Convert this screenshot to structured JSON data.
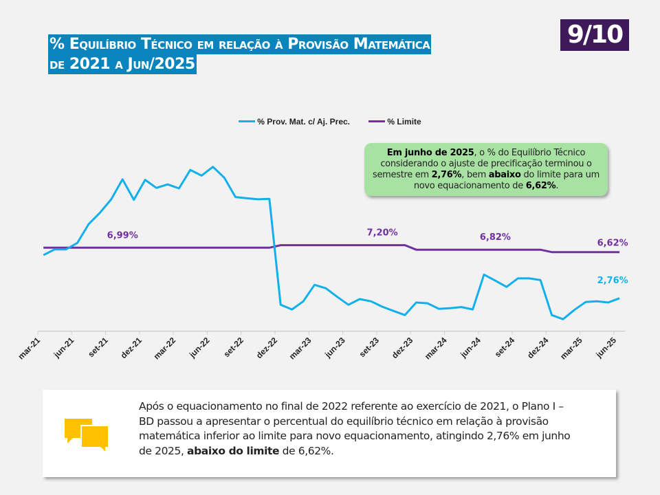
{
  "title": {
    "line1": "% Equilíbrio Técnico em relação à Provisão Matemática",
    "line2": "de 2021 a Jun/2025"
  },
  "page_badge": "9/10",
  "callout": {
    "bold1": "Em junho de 2025",
    "t1": ", o % do Equilíbrio Técnico considerando o ajuste de precificação terminou o semestre em ",
    "bold2": "2,76%",
    "t2": ", bem ",
    "bold3": "abaixo",
    "t3": " do limite para um novo equacionamento de ",
    "bold4": "6,62%",
    "t4": "."
  },
  "note": {
    "t1": "Após o equacionamento no final de 2022 referente ao exercício de 2021, o Plano I – BD passou a apresentar o percentual do equilíbrio técnico em relação à provisão matemática inferior ao limite para novo equacionamento, atingindo 2,76% em junho de 2025, ",
    "bold": "abaixo do limite",
    "t2": " de 6,62%."
  },
  "chart_data": {
    "type": "line",
    "title": "",
    "xlabel": "",
    "ylabel": "",
    "ylim": [
      0,
      14
    ],
    "grid": false,
    "legend_position": "top",
    "start_month": "mar-21",
    "end_month": "jun-25",
    "tick_labels": [
      "mar-21",
      "jun-21",
      "set-21",
      "dez-21",
      "mar-22",
      "jun-22",
      "set-22",
      "dez-22",
      "mar-23",
      "jun-23",
      "set-23",
      "dez-23",
      "mar-24",
      "jun-24",
      "set-24",
      "dez-24",
      "mar-25",
      "jun-25"
    ],
    "series": [
      {
        "name": "% Prov. Mat. c/ Aj. Prec.",
        "color": "#12b0ea",
        "values": [
          6.37,
          6.85,
          6.85,
          7.39,
          8.96,
          9.92,
          11.04,
          12.72,
          11.0,
          12.67,
          12.0,
          12.29,
          11.96,
          13.5,
          13.03,
          13.76,
          12.86,
          11.23,
          11.13,
          11.04,
          11.08,
          2.21,
          1.82,
          2.5,
          3.88,
          3.59,
          2.88,
          2.21,
          2.69,
          2.5,
          2.05,
          1.69,
          1.35,
          2.4,
          2.34,
          1.87,
          1.92,
          2.02,
          1.82,
          4.74,
          4.23,
          3.71,
          4.42,
          4.42,
          4.28,
          1.35,
          1.0,
          1.78,
          2.44,
          2.5,
          2.4,
          2.76
        ]
      },
      {
        "name": "% Limite",
        "color": "#7030a0",
        "values": [
          6.99,
          6.99,
          6.99,
          6.99,
          6.99,
          6.99,
          6.99,
          6.99,
          6.99,
          6.99,
          6.99,
          6.99,
          6.99,
          6.99,
          6.99,
          6.99,
          6.99,
          6.99,
          6.99,
          6.99,
          6.99,
          7.2,
          7.2,
          7.2,
          7.2,
          7.2,
          7.2,
          7.2,
          7.2,
          7.2,
          7.2,
          7.2,
          7.2,
          6.82,
          6.82,
          6.82,
          6.82,
          6.82,
          6.82,
          6.82,
          6.82,
          6.82,
          6.82,
          6.82,
          6.82,
          6.62,
          6.62,
          6.62,
          6.62,
          6.62,
          6.62,
          6.62
        ]
      }
    ],
    "annotations": [
      {
        "text": "6,99%",
        "series": 1,
        "index": 7,
        "color": "#7030a0"
      },
      {
        "text": "7,20%",
        "series": 1,
        "index": 30,
        "color": "#7030a0"
      },
      {
        "text": "6,82%",
        "series": 1,
        "index": 40,
        "color": "#7030a0"
      },
      {
        "text": "6,62%",
        "series": 1,
        "index": 51,
        "color": "#7030a0"
      },
      {
        "text": "2,76%",
        "series": 0,
        "index": 51,
        "color": "#12b0ea"
      }
    ]
  }
}
